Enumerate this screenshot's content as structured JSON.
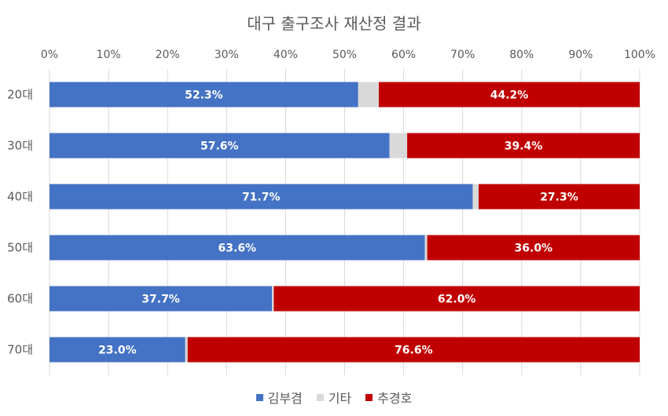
{
  "chart_data": {
    "type": "bar",
    "orientation": "horizontal",
    "stacked": true,
    "title": "대구 출구조사 재산정 결과",
    "categories": [
      "20대",
      "30대",
      "40대",
      "50대",
      "60대",
      "70대"
    ],
    "series": [
      {
        "name": "김부겸",
        "color": "#4472C4",
        "values": [
          52.3,
          57.6,
          71.7,
          63.6,
          37.7,
          23.0
        ],
        "labels": [
          "52.3%",
          "57.6%",
          "71.7%",
          "63.6%",
          "37.7%",
          "23.0%"
        ]
      },
      {
        "name": "기타",
        "color": "#D9D9D9",
        "values": [
          3.5,
          3.0,
          1.0,
          0.4,
          0.3,
          0.4
        ]
      },
      {
        "name": "추경호",
        "color": "#C00000",
        "values": [
          44.2,
          39.4,
          27.3,
          36.0,
          62.0,
          76.6
        ],
        "labels": [
          "44.2%",
          "39.4%",
          "27.3%",
          "36.0%",
          "62.0%",
          "76.6%"
        ]
      }
    ],
    "xlim": [
      0,
      100
    ],
    "x_ticks": [
      "0%",
      "10%",
      "20%",
      "30%",
      "40%",
      "50%",
      "60%",
      "70%",
      "80%",
      "90%",
      "100%"
    ],
    "x_axis_position": "top",
    "grid": true,
    "legend_position": "bottom"
  }
}
